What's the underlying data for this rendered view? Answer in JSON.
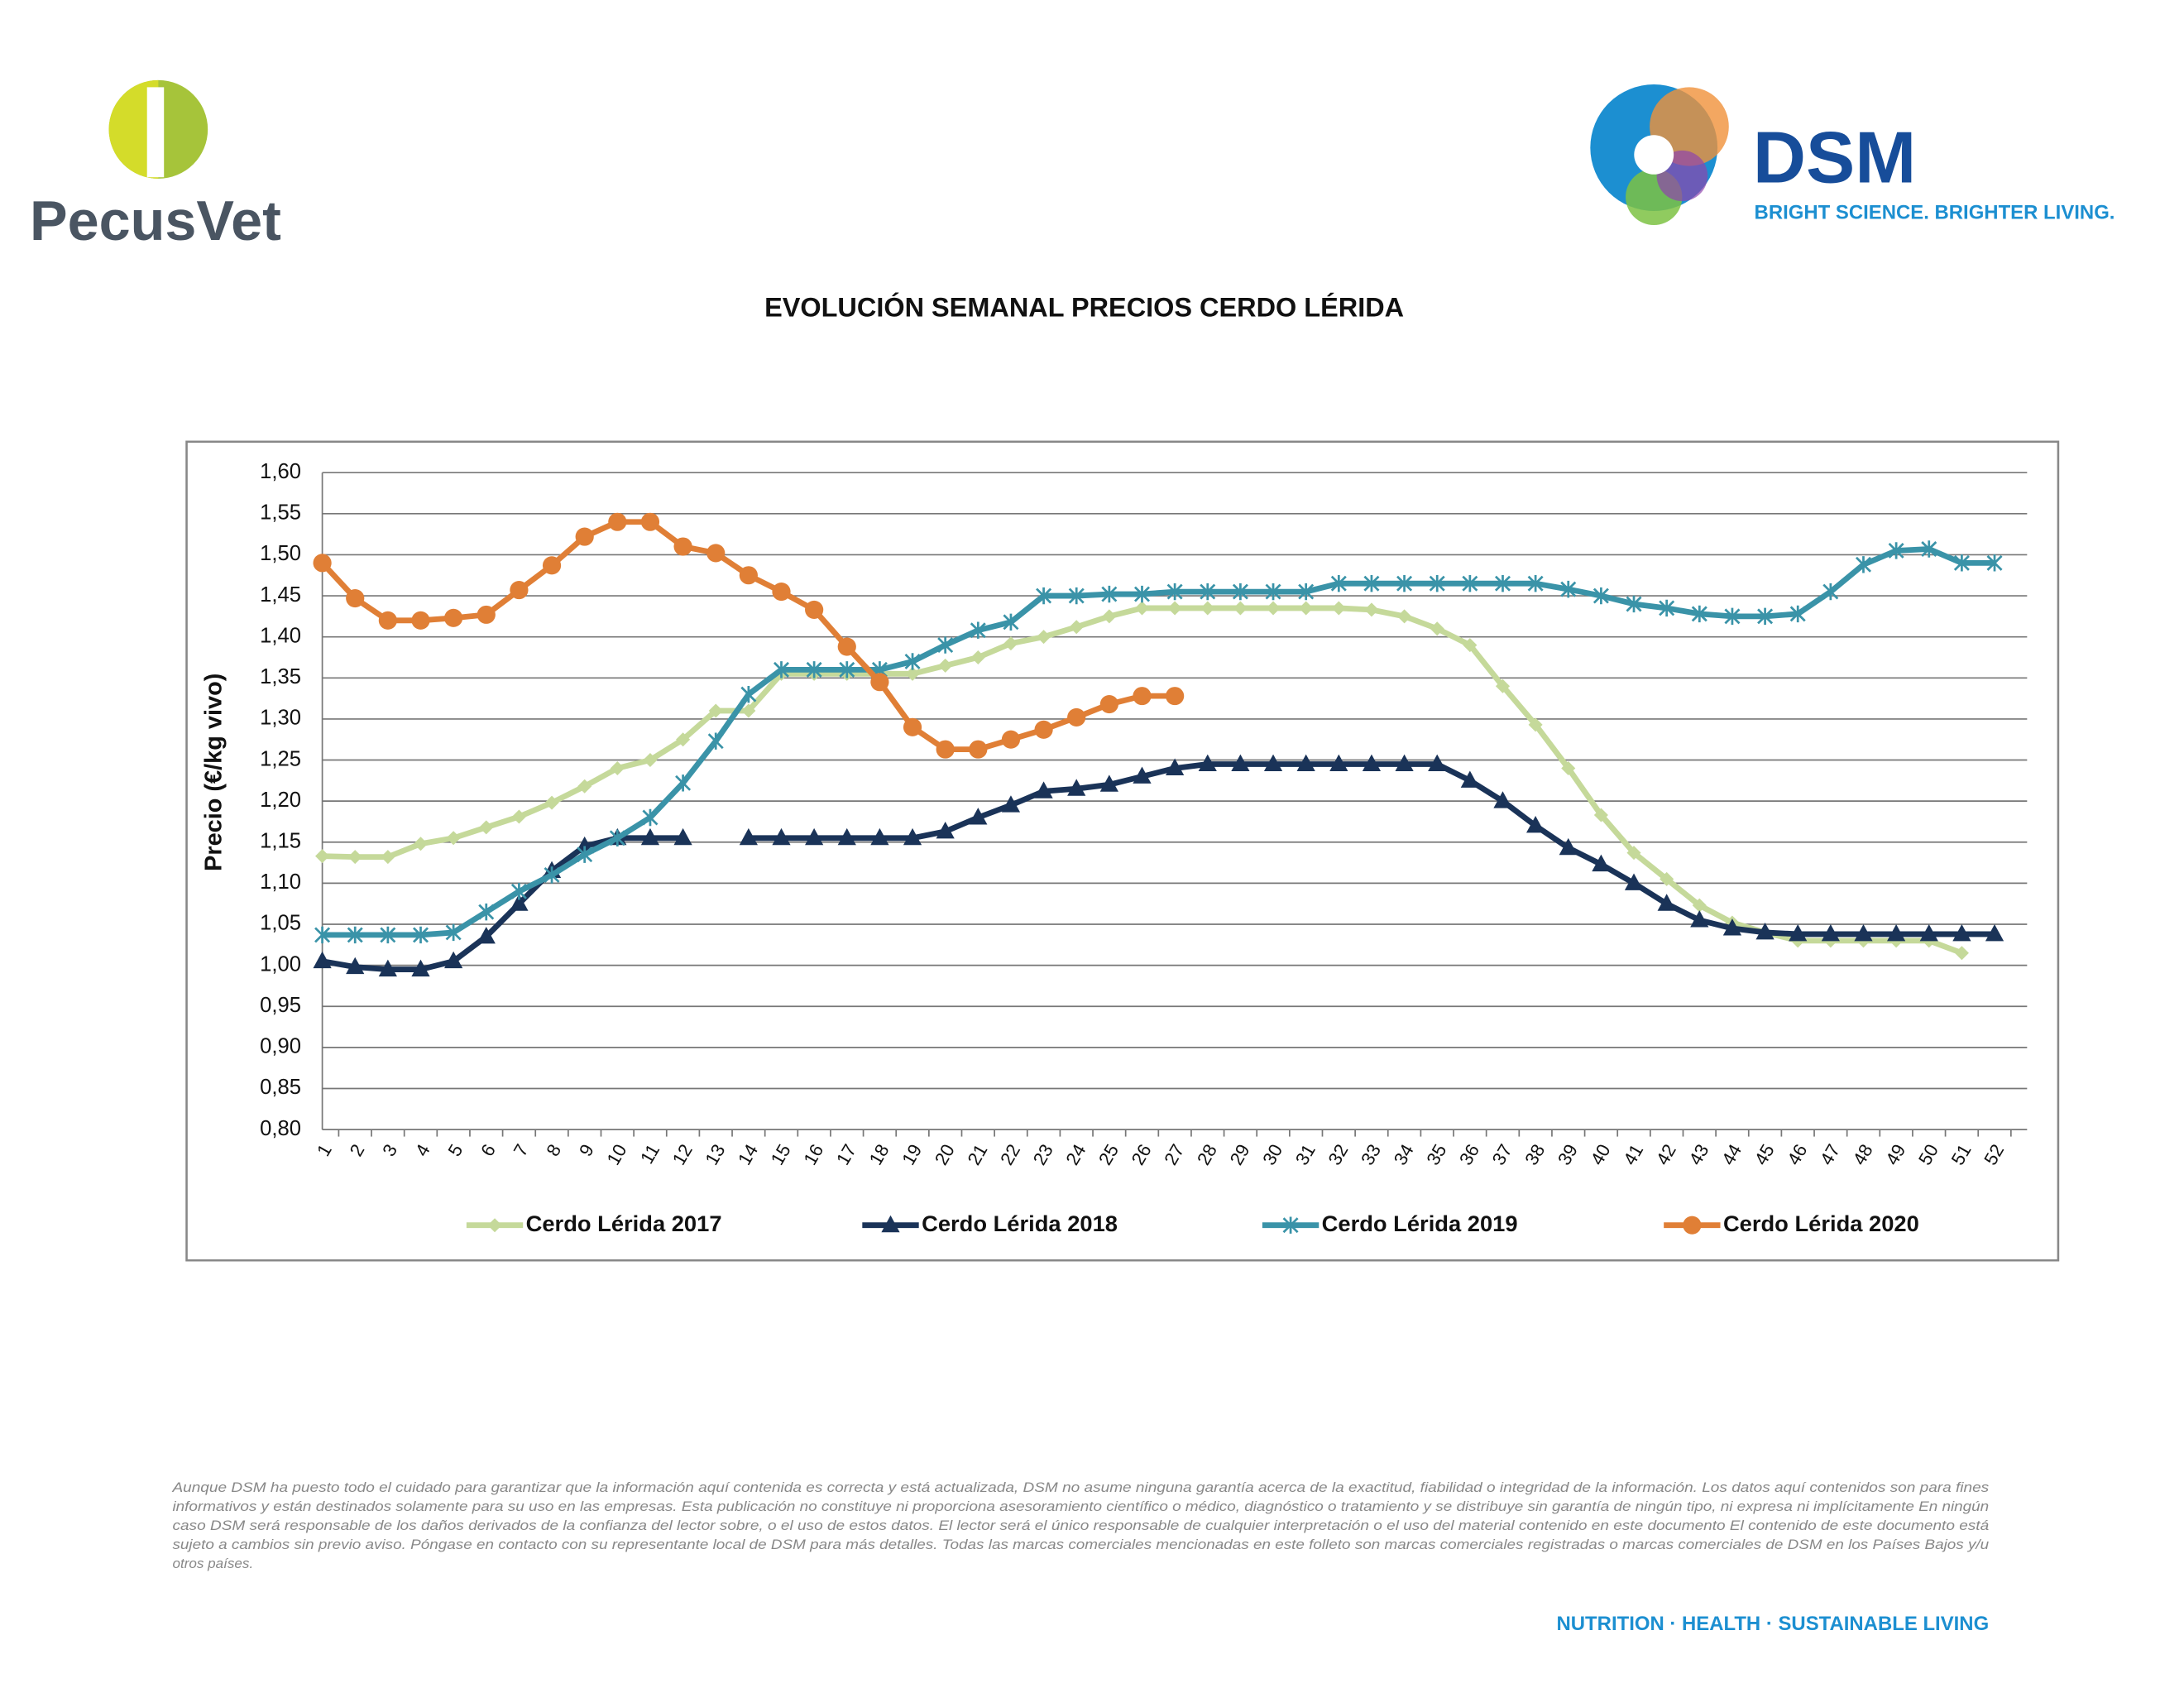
{
  "logo_left": {
    "name": "PecusVet"
  },
  "logo_right": {
    "name": "DSM",
    "tagline": "BRIGHT SCIENCE. BRIGHTER LIVING."
  },
  "chart_data": {
    "type": "line",
    "title": "EVOLUCIÓN SEMANAL PRECIOS CERDO LÉRIDA",
    "ylabel": "Precio (€/kg vivo)",
    "categories": [
      "1",
      "2",
      "3",
      "4",
      "5",
      "6",
      "7",
      "8",
      "9",
      "10",
      "11",
      "12",
      "13",
      "14",
      "15",
      "16",
      "17",
      "18",
      "19",
      "20",
      "21",
      "22",
      "23",
      "24",
      "25",
      "26",
      "27",
      "28",
      "29",
      "30",
      "31",
      "32",
      "33",
      "34",
      "35",
      "36",
      "37",
      "38",
      "39",
      "40",
      "41",
      "42",
      "43",
      "44",
      "45",
      "46",
      "47",
      "48",
      "49",
      "50",
      "51",
      "52"
    ],
    "ylim": [
      0.8,
      1.6
    ],
    "yticks": [
      {
        "value": 0.8,
        "label": "0,80"
      },
      {
        "value": 0.85,
        "label": "0,85"
      },
      {
        "value": 0.9,
        "label": "0,90"
      },
      {
        "value": 0.95,
        "label": "0,95"
      },
      {
        "value": 1.0,
        "label": "1,00"
      },
      {
        "value": 1.05,
        "label": "1,05"
      },
      {
        "value": 1.1,
        "label": "1,10"
      },
      {
        "value": 1.15,
        "label": "1,15"
      },
      {
        "value": 1.2,
        "label": "1,20"
      },
      {
        "value": 1.25,
        "label": "1,25"
      },
      {
        "value": 1.3,
        "label": "1,30"
      },
      {
        "value": 1.35,
        "label": "1,35"
      },
      {
        "value": 1.4,
        "label": "1,40"
      },
      {
        "value": 1.45,
        "label": "1,45"
      },
      {
        "value": 1.5,
        "label": "1,50"
      },
      {
        "value": 1.55,
        "label": "1,55"
      },
      {
        "value": 1.6,
        "label": "1,60"
      }
    ],
    "grid": true,
    "legend": "bottom",
    "series": [
      {
        "name": "Cerdo Lérida 2017",
        "color": "#c5d99a",
        "marker": "diamond",
        "values": [
          1.133,
          1.132,
          1.132,
          1.148,
          1.155,
          1.168,
          1.181,
          1.198,
          1.218,
          1.24,
          1.25,
          1.275,
          1.31,
          1.31,
          1.355,
          1.355,
          1.355,
          1.355,
          1.355,
          1.365,
          1.375,
          1.392,
          1.4,
          1.412,
          1.425,
          1.435,
          1.435,
          1.435,
          1.435,
          1.435,
          1.435,
          1.435,
          1.433,
          1.425,
          1.41,
          1.39,
          1.34,
          1.293,
          1.24,
          1.183,
          1.137,
          1.105,
          1.073,
          1.052,
          1.04,
          1.03,
          1.03,
          1.03,
          1.03,
          1.03,
          1.015,
          null
        ]
      },
      {
        "name": "Cerdo Lérida 2018",
        "color": "#1a3358",
        "marker": "triangle",
        "values": [
          1.005,
          0.998,
          0.995,
          0.995,
          1.005,
          1.035,
          1.075,
          1.115,
          1.145,
          1.155,
          1.155,
          1.155,
          null,
          1.155,
          1.155,
          1.155,
          1.155,
          1.155,
          1.155,
          1.163,
          1.18,
          1.195,
          1.212,
          1.215,
          1.22,
          1.23,
          1.24,
          1.245,
          1.245,
          1.245,
          1.245,
          1.245,
          1.245,
          1.245,
          1.245,
          1.225,
          1.2,
          1.17,
          1.143,
          1.123,
          1.1,
          1.075,
          1.055,
          1.045,
          1.04,
          1.038,
          1.038,
          1.038,
          1.038,
          1.038,
          1.038,
          1.038
        ]
      },
      {
        "name": "Cerdo Lérida 2019",
        "color": "#3a93a8",
        "marker": "star",
        "values": [
          1.037,
          1.037,
          1.037,
          1.037,
          1.04,
          1.065,
          1.09,
          1.11,
          1.135,
          1.155,
          1.18,
          1.222,
          1.273,
          1.33,
          1.36,
          1.36,
          1.36,
          1.36,
          1.37,
          1.39,
          1.408,
          1.418,
          1.45,
          1.45,
          1.452,
          1.452,
          1.455,
          1.455,
          1.455,
          1.455,
          1.455,
          1.465,
          1.465,
          1.465,
          1.465,
          1.465,
          1.465,
          1.465,
          1.458,
          1.45,
          1.44,
          1.435,
          1.428,
          1.425,
          1.425,
          1.428,
          1.455,
          1.488,
          1.505,
          1.507,
          1.49,
          1.49
        ]
      },
      {
        "name": "Cerdo Lérida 2020",
        "color": "#e07f36",
        "marker": "circle",
        "values": [
          1.49,
          1.447,
          1.42,
          1.42,
          1.423,
          1.427,
          1.457,
          1.487,
          1.522,
          1.54,
          1.54,
          1.51,
          1.502,
          1.475,
          1.455,
          1.433,
          1.388,
          1.345,
          1.29,
          1.263,
          1.263,
          1.275,
          1.287,
          1.302,
          1.318,
          1.328,
          1.328,
          null,
          null,
          null,
          null,
          null,
          null,
          null,
          null,
          null,
          null,
          null,
          null,
          null,
          null,
          null,
          null,
          null,
          null,
          null,
          null,
          null,
          null,
          null,
          null,
          null
        ]
      }
    ]
  },
  "disclaimer": [
    "Aunque DSM ha puesto todo el cuidado para garantizar que la información aquí contenida es correcta y está actualizada, DSM no asume ninguna garantía acerca de la exactitud, fiabilidad o integridad de la información. Los datos aquí contenidos son para fines",
    "informativos y están destinados solamente para su uso en las empresas. Esta publicación no constituye ni proporciona asesoramiento científico o médico, diagnóstico o tratamiento y se distribuye sin garantía de ningún tipo, ni expresa ni implícitamente En ningún",
    "caso DSM será responsable de los daños derivados de la confianza del lector sobre, o el uso de estos datos. El lector será el único responsable de cualquier interpretación o el uso del material contenido en este documento El contenido de este documento está",
    "sujeto a cambios sin previo aviso. Póngase en contacto con su representante local de DSM para más detalles. Todas las marcas comerciales mencionadas en este folleto son marcas comerciales registradas o marcas comerciales de DSM en los Países Bajos y/u",
    "otros países."
  ],
  "footer": "NUTRITION · HEALTH · SUSTAINABLE LIVING"
}
